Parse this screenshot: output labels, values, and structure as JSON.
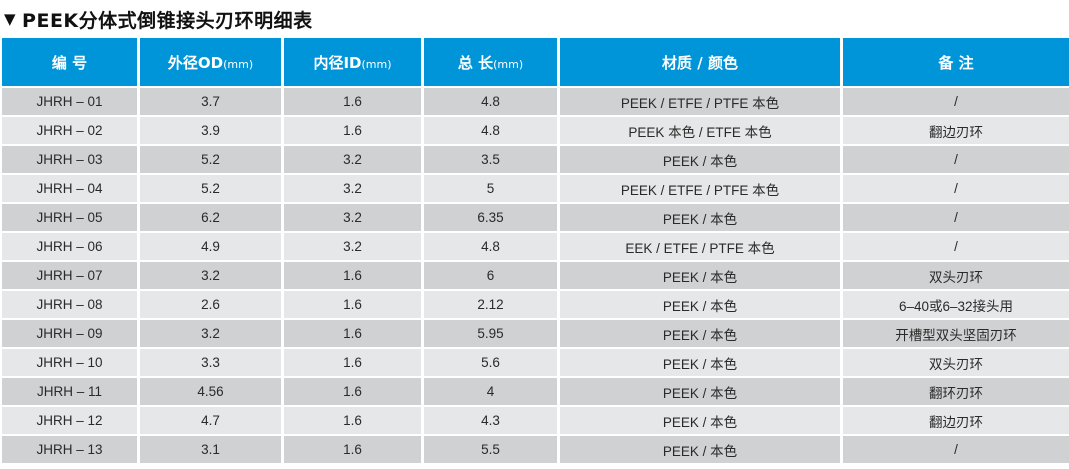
{
  "title": {
    "marker": "▼",
    "text": "PEEK分体式倒锥接头刃环明细表"
  },
  "colors": {
    "header_bg": "#0095d8",
    "row_dark": "#d0d1d3",
    "row_light": "#e6e7e8"
  },
  "table": {
    "headers": [
      {
        "label": "编  号",
        "unit": ""
      },
      {
        "label": "外径OD",
        "unit": "(mm)"
      },
      {
        "label": "内径ID",
        "unit": "(mm)"
      },
      {
        "label": "总  长",
        "unit": "(mm)"
      },
      {
        "label": "材质 / 颜色",
        "unit": ""
      },
      {
        "label": "备  注",
        "unit": ""
      }
    ],
    "rows": [
      [
        "JHRH – 01",
        "3.7",
        "1.6",
        "4.8",
        "PEEK / ETFE / PTFE 本色",
        "/"
      ],
      [
        "JHRH – 02",
        "3.9",
        "1.6",
        "4.8",
        "PEEK  本色 / ETFE 本色",
        "翻边刃环"
      ],
      [
        "JHRH – 03",
        "5.2",
        "3.2",
        "3.5",
        "PEEK / 本色",
        "/"
      ],
      [
        "JHRH – 04",
        "5.2",
        "3.2",
        "5",
        "PEEK / ETFE / PTFE 本色",
        "/"
      ],
      [
        "JHRH – 05",
        "6.2",
        "3.2",
        "6.35",
        "PEEK / 本色",
        "/"
      ],
      [
        "JHRH – 06",
        "4.9",
        "3.2",
        "4.8",
        "EEK / ETFE / PTFE 本色",
        "/"
      ],
      [
        "JHRH – 07",
        "3.2",
        "1.6",
        "6",
        "PEEK / 本色",
        "双头刃环"
      ],
      [
        "JHRH – 08",
        "2.6",
        "1.6",
        "2.12",
        "PEEK / 本色",
        "6–40或6–32接头用"
      ],
      [
        "JHRH – 09",
        "3.2",
        "1.6",
        "5.95",
        "PEEK / 本色",
        "开槽型双头坚固刃环"
      ],
      [
        "JHRH – 10",
        "3.3",
        "1.6",
        "5.6",
        "PEEK / 本色",
        "双头刃环"
      ],
      [
        "JHRH – 11",
        "4.56",
        "1.6",
        "4",
        "PEEK / 本色",
        "翻环刃环"
      ],
      [
        "JHRH – 12",
        "4.7",
        "1.6",
        "4.3",
        "PEEK / 本色",
        "翻边刃环"
      ],
      [
        "JHRH – 13",
        "3.1",
        "1.6",
        "5.5",
        "PEEK / 本色",
        "/"
      ]
    ]
  }
}
